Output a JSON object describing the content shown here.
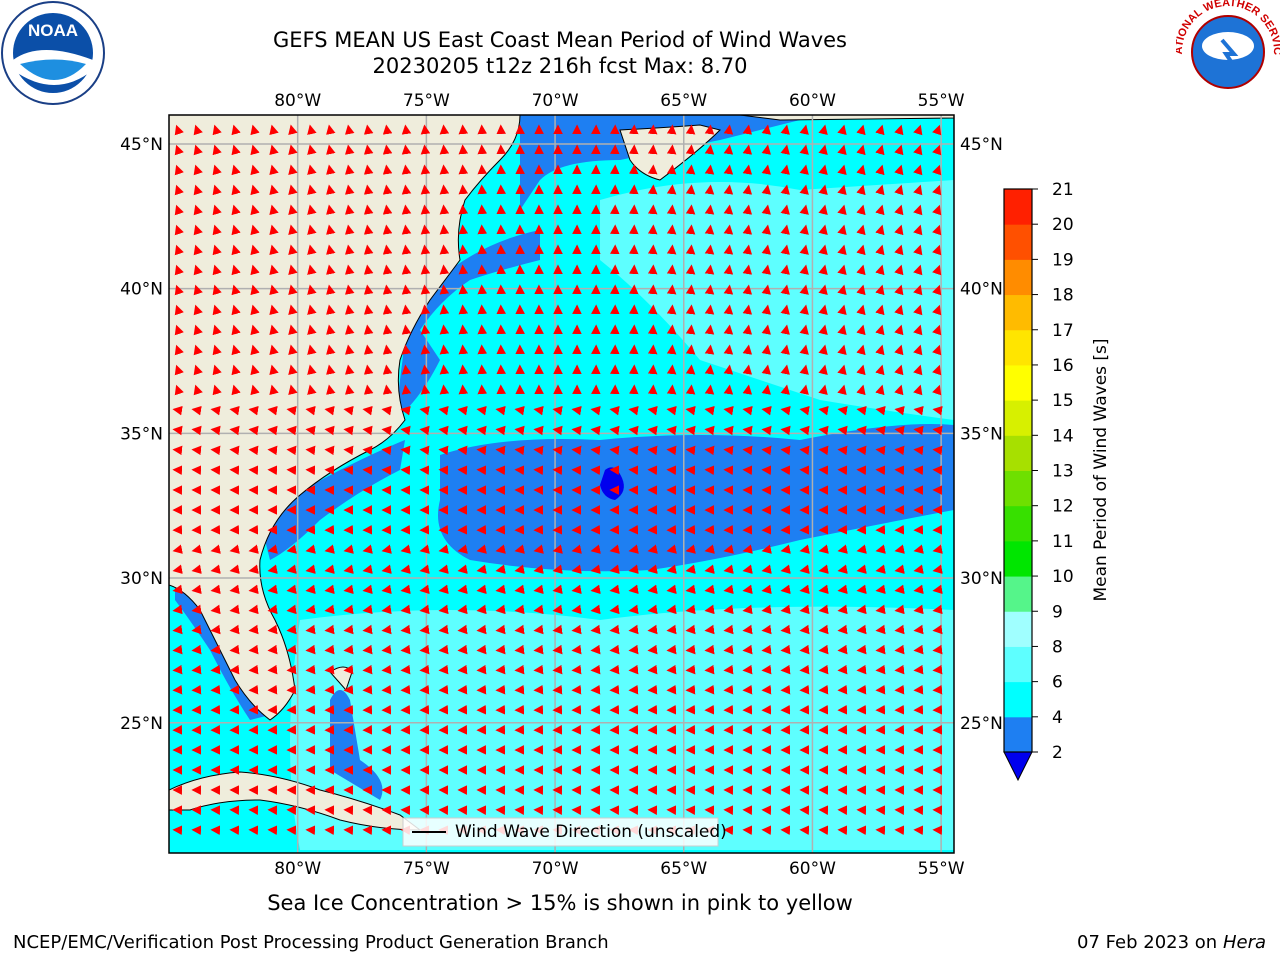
{
  "title": {
    "line1": "GEFS MEAN US East Coast Mean Period of Wind Waves",
    "line2": "20230205 t12z 216h fcst   Max: 8.70"
  },
  "map": {
    "lon_ticks": [
      "80°W",
      "75°W",
      "70°W",
      "65°W",
      "60°W",
      "55°W"
    ],
    "lat_ticks": [
      "45°N",
      "40°N",
      "35°N",
      "30°N",
      "25°N"
    ],
    "extent": {
      "lon_min": -85,
      "lon_max": -54.5,
      "lat_min": 20.5,
      "lat_max": 46
    },
    "colors": {
      "land": "#efeddc",
      "band_2_4": "#1e7ff2",
      "band_4_6": "#00ffff",
      "band_6_8": "#5effff",
      "band_below_2": "#0000ee",
      "arrows": "#ff0000",
      "grid": "#b0b0b0"
    },
    "legend_label": "Wind Wave Direction (unscaled)"
  },
  "colorbar": {
    "label": "Mean Period of Wind Waves [s]",
    "ticks": [
      "2",
      "4",
      "6",
      "8",
      "9",
      "10",
      "11",
      "12",
      "13",
      "14",
      "15",
      "16",
      "17",
      "18",
      "19",
      "20",
      "21"
    ],
    "colors": [
      "#1e7ff2",
      "#00ffff",
      "#5effff",
      "#a0ffff",
      "#55f58a",
      "#00e600",
      "#37e000",
      "#6ee000",
      "#a7e000",
      "#d7f000",
      "#ffff00",
      "#ffe500",
      "#ffbb00",
      "#ff8c00",
      "#ff5000",
      "#ff2000"
    ],
    "extend_color": "#0000ee"
  },
  "footer": {
    "caption": "Sea Ice Concentration > 15% is shown in pink to yellow",
    "credit": "NCEP/EMC/Verification Post Processing Product Generation Branch",
    "date": "07 Feb 2023 on",
    "machine": "Hera"
  },
  "logos": {
    "left": "NOAA",
    "right": "NATIONAL WEATHER SERVICE"
  }
}
